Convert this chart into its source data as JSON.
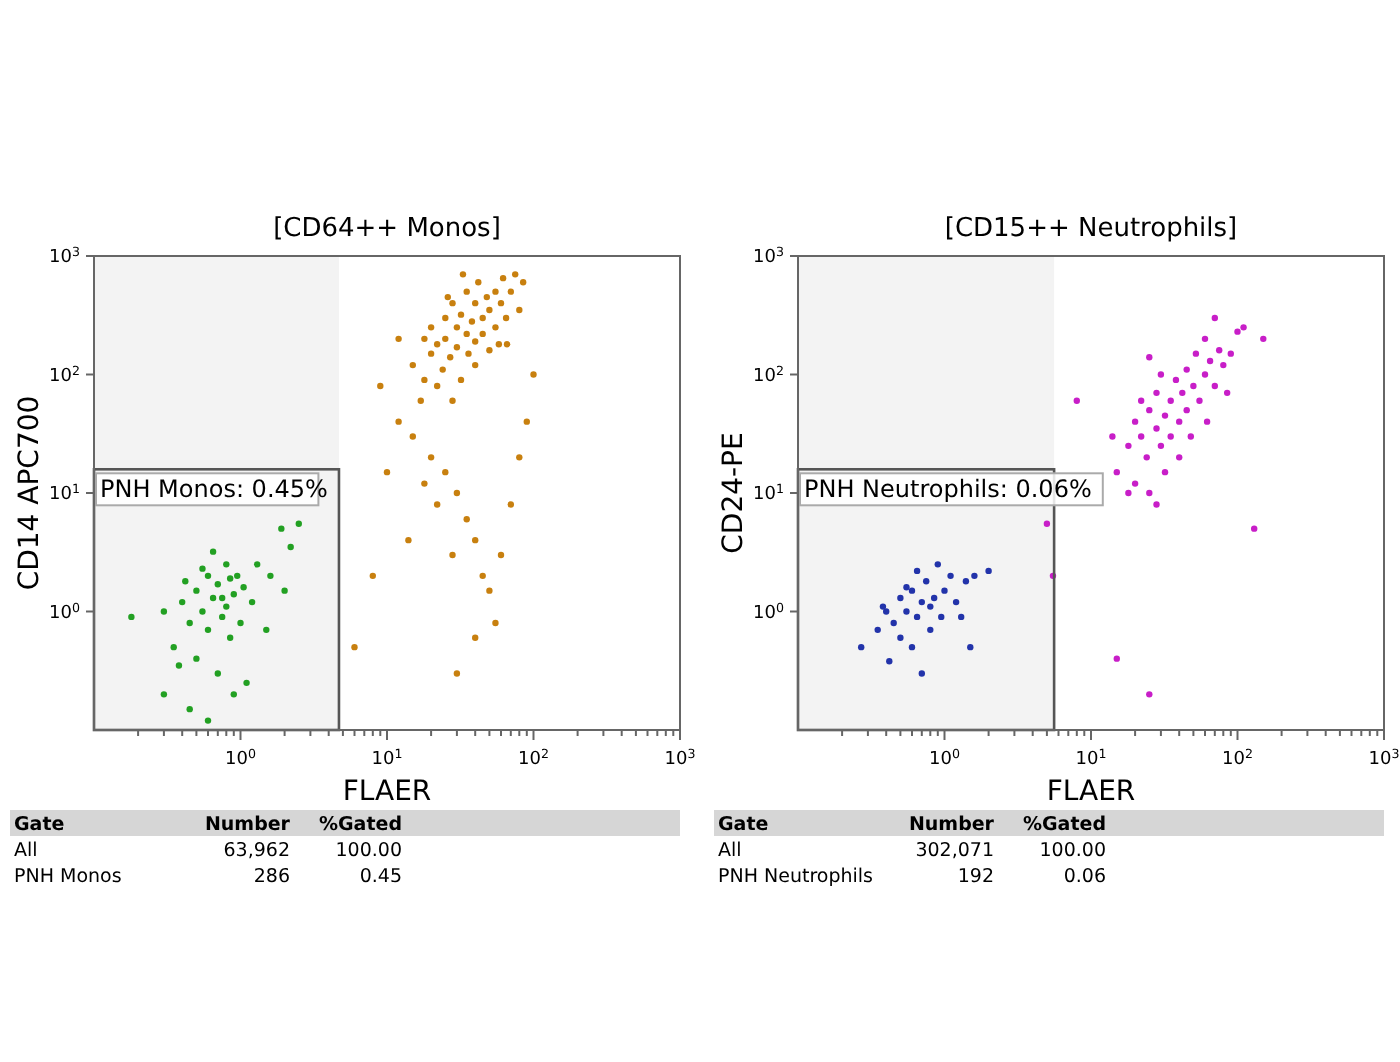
{
  "chart_data": [
    {
      "type": "scatter",
      "title": "[CD64++ Monos]",
      "xlabel": "FLAER",
      "ylabel": "CD14 APC700",
      "log": "xy",
      "marker": "circle",
      "xlim": [
        0.1,
        1000
      ],
      "ylim": [
        0.1,
        1000
      ],
      "xticks": [
        {
          "value": 0.2,
          "label": null
        },
        {
          "value": 0.3,
          "label": null
        },
        {
          "value": 0.4,
          "label": null
        },
        {
          "value": 0.5,
          "label": null
        },
        {
          "value": 0.6,
          "label": null
        },
        {
          "value": 0.7,
          "label": null
        },
        {
          "value": 0.8,
          "label": null
        },
        {
          "value": 0.9,
          "label": null
        },
        {
          "value": 1,
          "label": "10$^{0}$"
        },
        {
          "value": 2,
          "label": null
        },
        {
          "value": 3,
          "label": null
        },
        {
          "value": 4,
          "label": null
        },
        {
          "value": 5,
          "label": null
        },
        {
          "value": 6,
          "label": null
        },
        {
          "value": 7,
          "label": null
        },
        {
          "value": 8,
          "label": null
        },
        {
          "value": 9,
          "label": null
        },
        {
          "value": 10,
          "label": "10$^{1}$"
        },
        {
          "value": 20,
          "label": null
        },
        {
          "value": 30,
          "label": null
        },
        {
          "value": 40,
          "label": null
        },
        {
          "value": 50,
          "label": null
        },
        {
          "value": 60,
          "label": null
        },
        {
          "value": 70,
          "label": null
        },
        {
          "value": 80,
          "label": null
        },
        {
          "value": 90,
          "label": null
        },
        {
          "value": 100,
          "label": "10$^{2}$"
        },
        {
          "value": 200,
          "label": null
        },
        {
          "value": 300,
          "label": null
        },
        {
          "value": 400,
          "label": null
        },
        {
          "value": 500,
          "label": null
        },
        {
          "value": 600,
          "label": null
        },
        {
          "value": 700,
          "label": null
        },
        {
          "value": 800,
          "label": null
        },
        {
          "value": 900,
          "label": null
        },
        {
          "value": 1000,
          "label": "10$^{3}$"
        }
      ],
      "yticks": [
        {
          "value": 1,
          "label": "10$^{0}$"
        },
        {
          "value": 10,
          "label": "10$^{1}$"
        },
        {
          "value": 100,
          "label": "10$^{2}$"
        },
        {
          "value": 1000,
          "label": "10$^{3}$"
        }
      ],
      "series": [
        {
          "color": "#c8800f",
          "x": [
            15,
            18,
            20,
            20,
            22,
            24,
            25,
            25,
            27,
            28,
            30,
            30,
            32,
            32,
            35,
            35,
            36,
            38,
            40,
            40,
            42,
            45,
            45,
            48,
            50,
            50,
            55,
            55,
            60,
            62,
            65,
            70,
            75,
            80,
            18,
            22,
            28,
            40,
            58,
            85,
            33,
            26,
            17,
            66,
            12,
            15,
            20,
            25,
            30,
            35,
            40,
            28,
            45,
            50,
            22,
            18,
            60,
            70,
            80,
            90,
            14,
            10,
            8,
            6,
            40,
            55,
            30,
            100,
            12,
            9
          ],
          "values": [
            120,
            90,
            150,
            250,
            180,
            110,
            300,
            200,
            140,
            400,
            250,
            170,
            90,
            320,
            220,
            500,
            150,
            280,
            400,
            190,
            600,
            300,
            220,
            450,
            350,
            160,
            500,
            250,
            400,
            650,
            300,
            500,
            700,
            350,
            200,
            80,
            60,
            120,
            180,
            600,
            700,
            450,
            60,
            180,
            40,
            30,
            20,
            15,
            10,
            6,
            4,
            3,
            2,
            1.5,
            8,
            12,
            3,
            8,
            20,
            40,
            4,
            15,
            2,
            0.5,
            0.6,
            0.8,
            0.3,
            100,
            200,
            80
          ]
        },
        {
          "color": "#22a022",
          "x": [
            0.18,
            0.3,
            0.35,
            0.4,
            0.45,
            0.5,
            0.5,
            0.55,
            0.6,
            0.6,
            0.65,
            0.7,
            0.7,
            0.75,
            0.8,
            0.8,
            0.85,
            0.9,
            0.95,
            1.0,
            1.05,
            1.1,
            1.2,
            1.3,
            1.5,
            1.6,
            2.0,
            2.2,
            2.5,
            1.9,
            0.45,
            0.6,
            0.38,
            0.9,
            0.65,
            0.55,
            0.42,
            0.3,
            0.75,
            0.85
          ],
          "values": [
            0.9,
            0.2,
            0.5,
            1.2,
            0.8,
            1.5,
            0.4,
            1.0,
            2.0,
            0.7,
            1.3,
            0.3,
            1.7,
            0.9,
            2.5,
            1.1,
            0.6,
            1.4,
            2.0,
            0.8,
            1.6,
            0.25,
            1.2,
            2.5,
            0.7,
            2.0,
            1.5,
            3.5,
            5.5,
            5.0,
            0.15,
            0.12,
            0.35,
            0.2,
            3.2,
            2.3,
            1.8,
            1.0,
            1.3,
            1.9
          ]
        }
      ],
      "bands": [
        {
          "axis": "x",
          "from": 0.1,
          "to": 4.7,
          "label": "PNH Monos: 0.45%",
          "color": "#f3f3f3"
        }
      ],
      "annotations": [
        "Gate",
        "Number",
        "%Gated",
        "All",
        "63,962",
        "100.00",
        "PNH Monos",
        "286",
        "0.45"
      ]
    },
    {
      "type": "scatter",
      "title": "[CD15++ Neutrophils]",
      "xlabel": "FLAER",
      "ylabel": "CD24-PE",
      "log": "xy",
      "marker": "circle",
      "xlim": [
        0.1,
        1000
      ],
      "ylim": [
        0.1,
        1000
      ],
      "xticks": [
        {
          "value": 0.2,
          "label": null
        },
        {
          "value": 0.3,
          "label": null
        },
        {
          "value": 0.4,
          "label": null
        },
        {
          "value": 0.5,
          "label": null
        },
        {
          "value": 0.6,
          "label": null
        },
        {
          "value": 0.7,
          "label": null
        },
        {
          "value": 0.8,
          "label": null
        },
        {
          "value": 0.9,
          "label": null
        },
        {
          "value": 1,
          "label": "10$^{0}$"
        },
        {
          "value": 2,
          "label": null
        },
        {
          "value": 3,
          "label": null
        },
        {
          "value": 4,
          "label": null
        },
        {
          "value": 5,
          "label": null
        },
        {
          "value": 6,
          "label": null
        },
        {
          "value": 7,
          "label": null
        },
        {
          "value": 8,
          "label": null
        },
        {
          "value": 9,
          "label": null
        },
        {
          "value": 10,
          "label": "10$^{1}$"
        },
        {
          "value": 20,
          "label": null
        },
        {
          "value": 30,
          "label": null
        },
        {
          "value": 40,
          "label": null
        },
        {
          "value": 50,
          "label": null
        },
        {
          "value": 60,
          "label": null
        },
        {
          "value": 70,
          "label": null
        },
        {
          "value": 80,
          "label": null
        },
        {
          "value": 90,
          "label": null
        },
        {
          "value": 100,
          "label": "10$^{2}$"
        },
        {
          "value": 200,
          "label": null
        },
        {
          "value": 300,
          "label": null
        },
        {
          "value": 400,
          "label": null
        },
        {
          "value": 500,
          "label": null
        },
        {
          "value": 600,
          "label": null
        },
        {
          "value": 700,
          "label": null
        },
        {
          "value": 800,
          "label": null
        },
        {
          "value": 900,
          "label": null
        },
        {
          "value": 1000,
          "label": "10$^{3}$"
        }
      ],
      "yticks": [
        {
          "value": 1,
          "label": "10$^{0}$"
        },
        {
          "value": 10,
          "label": "10$^{1}$"
        },
        {
          "value": 100,
          "label": "10$^{2}$"
        },
        {
          "value": 1000,
          "label": "10$^{3}$"
        }
      ],
      "series": [
        {
          "color": "#c81ec8",
          "x": [
            15,
            18,
            20,
            20,
            22,
            24,
            25,
            25,
            28,
            28,
            30,
            32,
            32,
            35,
            35,
            38,
            40,
            40,
            42,
            45,
            45,
            48,
            50,
            52,
            55,
            60,
            62,
            65,
            70,
            75,
            80,
            85,
            30,
            22,
            60,
            18,
            28,
            90,
            100,
            14,
            70,
            110,
            25,
            5,
            5.5,
            15,
            25,
            130,
            8,
            150
          ],
          "values": [
            15,
            25,
            12,
            40,
            30,
            20,
            50,
            10,
            35,
            70,
            25,
            45,
            15,
            60,
            30,
            90,
            40,
            20,
            70,
            110,
            50,
            30,
            80,
            150,
            60,
            100,
            40,
            130,
            80,
            160,
            120,
            70,
            100,
            60,
            200,
            10,
            8,
            150,
            230,
            30,
            300,
            250,
            140,
            5.5,
            2,
            0.4,
            0.2,
            5,
            60,
            200
          ]
        },
        {
          "color": "#2233aa",
          "x": [
            0.27,
            0.35,
            0.4,
            0.42,
            0.45,
            0.5,
            0.5,
            0.55,
            0.6,
            0.6,
            0.65,
            0.7,
            0.7,
            0.75,
            0.8,
            0.8,
            0.85,
            0.9,
            0.95,
            1.0,
            1.1,
            1.2,
            1.4,
            1.5,
            1.6,
            2.0,
            0.55,
            0.65,
            1.3,
            0.38
          ],
          "values": [
            0.5,
            0.7,
            1.0,
            0.38,
            0.8,
            1.3,
            0.6,
            1.0,
            1.5,
            0.5,
            0.9,
            1.2,
            0.3,
            1.8,
            1.1,
            0.7,
            1.3,
            2.5,
            0.9,
            1.5,
            2.0,
            1.2,
            1.8,
            0.5,
            2.0,
            2.2,
            1.6,
            2.2,
            0.9,
            1.1
          ]
        }
      ],
      "bands": [
        {
          "axis": "x",
          "from": 0.1,
          "to": 5.6,
          "label": "PNH Neutrophils: 0.06%",
          "color": "#f3f3f3"
        }
      ],
      "annotations": [
        "Gate",
        "Number",
        "%Gated",
        "All",
        "302,071",
        "100.00",
        "PNH Neutrophils",
        "192",
        "0.06"
      ]
    }
  ]
}
